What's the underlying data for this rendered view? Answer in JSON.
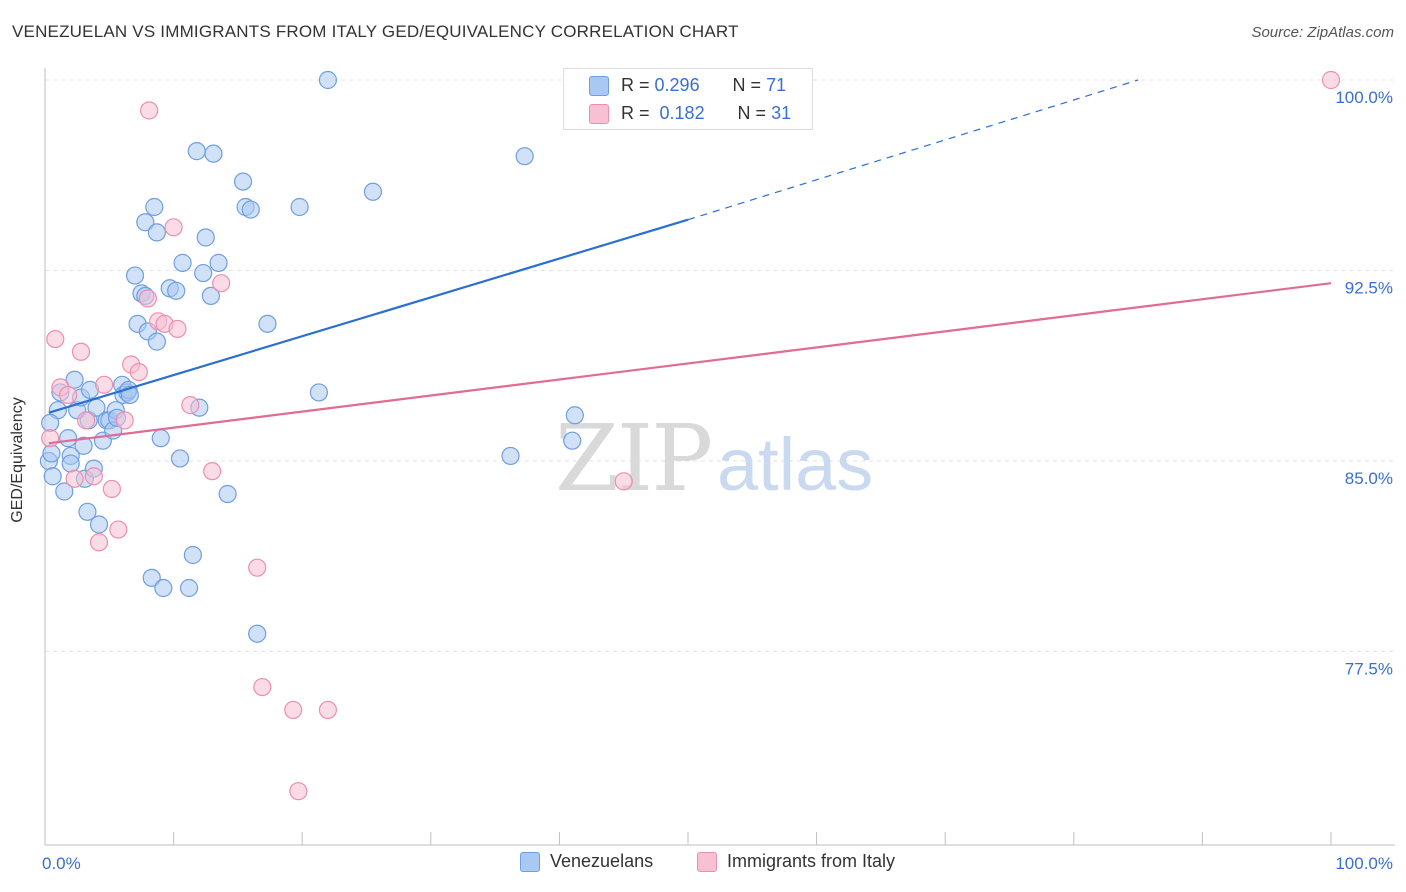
{
  "title": "VENEZUELAN VS IMMIGRANTS FROM ITALY GED/EQUIVALENCY CORRELATION CHART",
  "source": "Source: ZipAtlas.com",
  "legend": {
    "r_label": "R =",
    "n_label": "N =",
    "series": [
      {
        "name": "Venezuelans",
        "r": "0.296",
        "n": "71",
        "fill": "#a9c8f2",
        "stroke": "#6f9fe0"
      },
      {
        "name": "Immigrants from Italy",
        "r": "0.182",
        "n": "31",
        "fill": "#f8c0d2",
        "stroke": "#ec8fae"
      }
    ]
  },
  "colors": {
    "blue_line": "#2b6fd0",
    "pink_line": "#e36a95",
    "tick_text": "#3a6fd0",
    "grid": "#e3e3e3"
  },
  "watermark": {
    "zip": "ZIP",
    "atlas": "atlas"
  },
  "chart_data": {
    "type": "scatter",
    "title": "VENEZUELAN VS IMMIGRANTS FROM ITALY GED/EQUIVALENCY CORRELATION CHART",
    "xlabel": "",
    "ylabel": "GED/Equivalency",
    "xlim": [
      0,
      100
    ],
    "ylim": [
      71.0,
      100.8
    ],
    "x_tick_labels": [
      "0.0%",
      "100.0%"
    ],
    "y_ticks": [
      {
        "value": 100.0,
        "label": "100.0%"
      },
      {
        "value": 92.5,
        "label": "92.5%"
      },
      {
        "value": 85.0,
        "label": "85.0%"
      },
      {
        "value": 77.5,
        "label": "77.5%"
      }
    ],
    "grid": true,
    "series": [
      {
        "name": "Venezuelans",
        "trend": {
          "x0": 0.3,
          "y0": 86.9,
          "x1": 50.0,
          "y1": 94.5,
          "dash_to_x": 85.0,
          "dash_to_y": 100.0
        },
        "points": [
          [
            0.3,
            85.0
          ],
          [
            0.5,
            85.3
          ],
          [
            0.6,
            84.4
          ],
          [
            1.0,
            87.0
          ],
          [
            1.2,
            87.7
          ],
          [
            1.5,
            83.8
          ],
          [
            1.8,
            85.9
          ],
          [
            2.0,
            85.2
          ],
          [
            2.0,
            84.9
          ],
          [
            2.3,
            88.2
          ],
          [
            2.5,
            87.0
          ],
          [
            2.8,
            87.5
          ],
          [
            3.0,
            85.6
          ],
          [
            3.1,
            84.3
          ],
          [
            3.3,
            83.0
          ],
          [
            3.4,
            86.6
          ],
          [
            3.5,
            87.8
          ],
          [
            3.8,
            84.7
          ],
          [
            4.0,
            87.1
          ],
          [
            4.2,
            82.5
          ],
          [
            4.5,
            85.8
          ],
          [
            4.8,
            86.6
          ],
          [
            5.0,
            86.6
          ],
          [
            5.3,
            86.2
          ],
          [
            5.5,
            87.0
          ],
          [
            5.6,
            86.7
          ],
          [
            6.0,
            88.0
          ],
          [
            6.1,
            87.6
          ],
          [
            6.4,
            87.7
          ],
          [
            6.5,
            87.8
          ],
          [
            6.6,
            87.6
          ],
          [
            7.0,
            92.3
          ],
          [
            7.2,
            90.4
          ],
          [
            7.5,
            91.6
          ],
          [
            7.8,
            91.5
          ],
          [
            7.8,
            94.4
          ],
          [
            8.0,
            90.1
          ],
          [
            8.3,
            80.4
          ],
          [
            8.5,
            95.0
          ],
          [
            8.7,
            94.0
          ],
          [
            8.7,
            89.7
          ],
          [
            9.0,
            85.9
          ],
          [
            9.2,
            80.0
          ],
          [
            9.7,
            91.8
          ],
          [
            10.2,
            91.7
          ],
          [
            10.5,
            85.1
          ],
          [
            10.7,
            92.8
          ],
          [
            11.2,
            80.0
          ],
          [
            11.5,
            81.3
          ],
          [
            11.8,
            97.2
          ],
          [
            12.0,
            87.1
          ],
          [
            12.3,
            92.4
          ],
          [
            12.5,
            93.8
          ],
          [
            12.9,
            91.5
          ],
          [
            13.1,
            97.1
          ],
          [
            13.5,
            92.8
          ],
          [
            14.2,
            83.7
          ],
          [
            15.4,
            96.0
          ],
          [
            15.6,
            95.0
          ],
          [
            16.0,
            94.9
          ],
          [
            16.5,
            78.2
          ],
          [
            17.3,
            90.4
          ],
          [
            19.8,
            95.0
          ],
          [
            21.3,
            87.7
          ],
          [
            22.0,
            100.0
          ],
          [
            25.5,
            95.6
          ],
          [
            36.2,
            85.2
          ],
          [
            37.3,
            97.0
          ],
          [
            41.0,
            85.8
          ],
          [
            41.2,
            86.8
          ],
          [
            0.4,
            86.5
          ]
        ]
      },
      {
        "name": "Immigrants from Italy",
        "trend": {
          "x0": 0.3,
          "y0": 85.7,
          "x1": 100.0,
          "y1": 92.0
        },
        "points": [
          [
            0.4,
            85.9
          ],
          [
            0.8,
            89.8
          ],
          [
            1.2,
            87.9
          ],
          [
            1.8,
            87.6
          ],
          [
            2.3,
            84.3
          ],
          [
            2.8,
            89.3
          ],
          [
            3.2,
            86.6
          ],
          [
            3.8,
            84.4
          ],
          [
            4.2,
            81.8
          ],
          [
            4.6,
            88.0
          ],
          [
            5.2,
            83.9
          ],
          [
            5.7,
            82.3
          ],
          [
            6.2,
            86.6
          ],
          [
            6.7,
            88.8
          ],
          [
            7.3,
            88.5
          ],
          [
            8.0,
            91.4
          ],
          [
            8.1,
            98.8
          ],
          [
            8.8,
            90.5
          ],
          [
            9.3,
            90.4
          ],
          [
            10.0,
            94.2
          ],
          [
            10.3,
            90.2
          ],
          [
            11.3,
            87.2
          ],
          [
            13.0,
            84.6
          ],
          [
            13.7,
            92.0
          ],
          [
            16.5,
            80.8
          ],
          [
            16.9,
            76.1
          ],
          [
            19.3,
            75.2
          ],
          [
            19.7,
            72.0
          ],
          [
            22.0,
            75.2
          ],
          [
            45.0,
            84.2
          ],
          [
            100.0,
            100.0
          ]
        ]
      }
    ]
  }
}
